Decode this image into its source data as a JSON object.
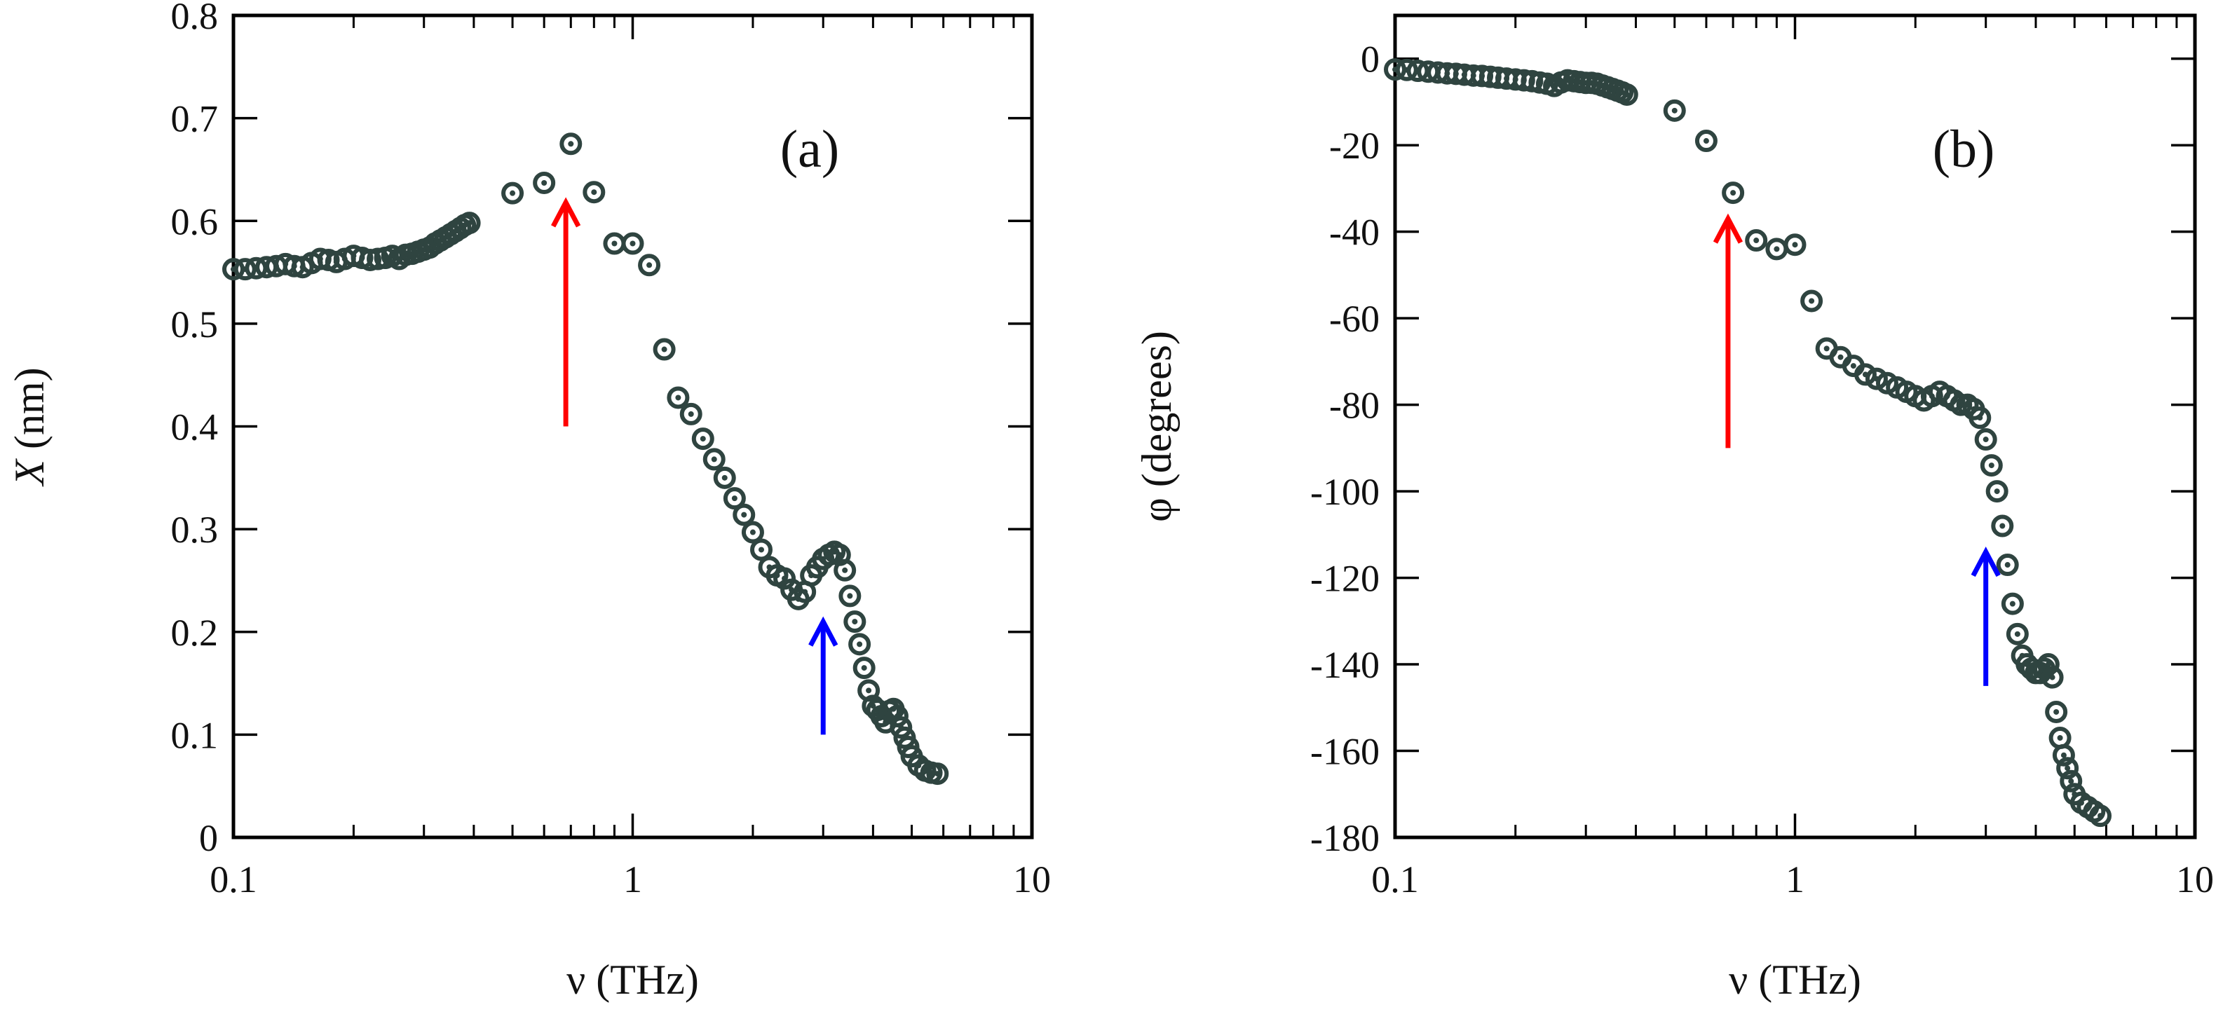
{
  "chart_data": [
    {
      "type": "scatter",
      "panel_label": "(a)",
      "xscale": "log",
      "xlim": [
        0.1,
        10
      ],
      "ylim": [
        0,
        0.8
      ],
      "xlabel": "ν (THz)",
      "ylabel": {
        "symbol": "X",
        "rest": " (nm)"
      },
      "xticks": [
        {
          "value": 0.1,
          "label": "0.1"
        },
        {
          "value": 1,
          "label": "1"
        },
        {
          "value": 10,
          "label": "10"
        }
      ],
      "yticks": [
        {
          "value": 0,
          "label": "0"
        },
        {
          "value": 0.1,
          "label": "0.1"
        },
        {
          "value": 0.2,
          "label": "0.2"
        },
        {
          "value": 0.3,
          "label": "0.3"
        },
        {
          "value": 0.4,
          "label": "0.4"
        },
        {
          "value": 0.5,
          "label": "0.5"
        },
        {
          "value": 0.6,
          "label": "0.6"
        },
        {
          "value": 0.7,
          "label": "0.7"
        },
        {
          "value": 0.8,
          "label": "0.8"
        }
      ],
      "series": [
        {
          "name": "data",
          "color": "#2f4440",
          "points": [
            [
              0.1,
              0.553
            ],
            [
              0.107,
              0.553
            ],
            [
              0.114,
              0.554
            ],
            [
              0.121,
              0.555
            ],
            [
              0.128,
              0.556
            ],
            [
              0.135,
              0.558
            ],
            [
              0.142,
              0.556
            ],
            [
              0.149,
              0.555
            ],
            [
              0.157,
              0.559
            ],
            [
              0.165,
              0.563
            ],
            [
              0.173,
              0.562
            ],
            [
              0.181,
              0.56
            ],
            [
              0.19,
              0.563
            ],
            [
              0.2,
              0.566
            ],
            [
              0.21,
              0.564
            ],
            [
              0.22,
              0.562
            ],
            [
              0.23,
              0.563
            ],
            [
              0.24,
              0.564
            ],
            [
              0.25,
              0.566
            ],
            [
              0.26,
              0.563
            ],
            [
              0.27,
              0.567
            ],
            [
              0.28,
              0.568
            ],
            [
              0.29,
              0.57
            ],
            [
              0.3,
              0.572
            ],
            [
              0.31,
              0.574
            ],
            [
              0.32,
              0.578
            ],
            [
              0.33,
              0.581
            ],
            [
              0.34,
              0.584
            ],
            [
              0.35,
              0.587
            ],
            [
              0.36,
              0.59
            ],
            [
              0.37,
              0.593
            ],
            [
              0.38,
              0.596
            ],
            [
              0.39,
              0.598
            ],
            [
              0.5,
              0.627
            ],
            [
              0.6,
              0.637
            ],
            [
              0.7,
              0.675
            ],
            [
              0.8,
              0.628
            ],
            [
              0.9,
              0.578
            ],
            [
              1.0,
              0.578
            ],
            [
              1.1,
              0.557
            ],
            [
              1.2,
              0.475
            ],
            [
              1.3,
              0.428
            ],
            [
              1.4,
              0.412
            ],
            [
              1.5,
              0.388
            ],
            [
              1.6,
              0.368
            ],
            [
              1.7,
              0.35
            ],
            [
              1.8,
              0.33
            ],
            [
              1.9,
              0.314
            ],
            [
              2.0,
              0.297
            ],
            [
              2.1,
              0.28
            ],
            [
              2.2,
              0.263
            ],
            [
              2.3,
              0.255
            ],
            [
              2.4,
              0.252
            ],
            [
              2.5,
              0.241
            ],
            [
              2.6,
              0.232
            ],
            [
              2.7,
              0.239
            ],
            [
              2.8,
              0.255
            ],
            [
              2.9,
              0.263
            ],
            [
              3.0,
              0.271
            ],
            [
              3.1,
              0.275
            ],
            [
              3.2,
              0.278
            ],
            [
              3.3,
              0.275
            ],
            [
              3.4,
              0.26
            ],
            [
              3.5,
              0.235
            ],
            [
              3.6,
              0.21
            ],
            [
              3.7,
              0.188
            ],
            [
              3.8,
              0.165
            ],
            [
              3.9,
              0.143
            ],
            [
              4.0,
              0.128
            ],
            [
              4.1,
              0.124
            ],
            [
              4.2,
              0.118
            ],
            [
              4.3,
              0.112
            ],
            [
              4.4,
              0.123
            ],
            [
              4.5,
              0.125
            ],
            [
              4.6,
              0.118
            ],
            [
              4.7,
              0.107
            ],
            [
              4.8,
              0.097
            ],
            [
              4.9,
              0.088
            ],
            [
              5.0,
              0.079
            ],
            [
              5.2,
              0.07
            ],
            [
              5.4,
              0.065
            ],
            [
              5.6,
              0.063
            ],
            [
              5.8,
              0.062
            ]
          ]
        }
      ],
      "arrows": [
        {
          "color": "#ff0000",
          "x": 0.68,
          "y_start": 0.4,
          "y_end": 0.618
        },
        {
          "color": "#0000ff",
          "x": 3.0,
          "y_start": 0.1,
          "y_end": 0.21
        }
      ]
    },
    {
      "type": "scatter",
      "panel_label": "(b)",
      "xscale": "log",
      "xlim": [
        0.1,
        10
      ],
      "ylim": [
        -180,
        10
      ],
      "xlabel": "ν (THz)",
      "ylabel": {
        "symbol": "φ",
        "rest": " (degrees)"
      },
      "xticks": [
        {
          "value": 0.1,
          "label": "0.1"
        },
        {
          "value": 1,
          "label": "1"
        },
        {
          "value": 10,
          "label": "10"
        }
      ],
      "yticks": [
        {
          "value": 0,
          "label": "0"
        },
        {
          "value": -20,
          "label": "-20"
        },
        {
          "value": -40,
          "label": "-40"
        },
        {
          "value": -60,
          "label": "-60"
        },
        {
          "value": -80,
          "label": "-80"
        },
        {
          "value": -100,
          "label": "-100"
        },
        {
          "value": -120,
          "label": "-120"
        },
        {
          "value": -140,
          "label": "-140"
        },
        {
          "value": -160,
          "label": "-160"
        },
        {
          "value": -180,
          "label": "-180"
        }
      ],
      "series": [
        {
          "name": "data",
          "color": "#2f4440",
          "points": [
            [
              0.1,
              -2.5
            ],
            [
              0.107,
              -2.6
            ],
            [
              0.114,
              -2.8
            ],
            [
              0.121,
              -3.0
            ],
            [
              0.128,
              -3.2
            ],
            [
              0.135,
              -3.4
            ],
            [
              0.142,
              -3.5
            ],
            [
              0.149,
              -3.7
            ],
            [
              0.157,
              -3.9
            ],
            [
              0.165,
              -4.0
            ],
            [
              0.173,
              -4.2
            ],
            [
              0.181,
              -4.4
            ],
            [
              0.19,
              -4.6
            ],
            [
              0.2,
              -4.8
            ],
            [
              0.21,
              -5.0
            ],
            [
              0.22,
              -5.2
            ],
            [
              0.23,
              -5.5
            ],
            [
              0.24,
              -5.8
            ],
            [
              0.25,
              -6.3
            ],
            [
              0.26,
              -5.5
            ],
            [
              0.27,
              -5.0
            ],
            [
              0.28,
              -5.2
            ],
            [
              0.29,
              -5.4
            ],
            [
              0.3,
              -5.6
            ],
            [
              0.31,
              -5.6
            ],
            [
              0.32,
              -5.8
            ],
            [
              0.33,
              -6.2
            ],
            [
              0.34,
              -6.6
            ],
            [
              0.35,
              -7.0
            ],
            [
              0.36,
              -7.4
            ],
            [
              0.37,
              -7.8
            ],
            [
              0.38,
              -8.3
            ],
            [
              0.5,
              -12
            ],
            [
              0.6,
              -19
            ],
            [
              0.7,
              -31
            ],
            [
              0.8,
              -42
            ],
            [
              0.9,
              -44
            ],
            [
              1.0,
              -43
            ],
            [
              1.1,
              -56
            ],
            [
              1.2,
              -67
            ],
            [
              1.3,
              -69
            ],
            [
              1.4,
              -71
            ],
            [
              1.5,
              -73
            ],
            [
              1.6,
              -74
            ],
            [
              1.7,
              -75
            ],
            [
              1.8,
              -76
            ],
            [
              1.9,
              -77
            ],
            [
              2.0,
              -78
            ],
            [
              2.1,
              -79
            ],
            [
              2.2,
              -78
            ],
            [
              2.3,
              -77
            ],
            [
              2.4,
              -78
            ],
            [
              2.5,
              -79
            ],
            [
              2.6,
              -80
            ],
            [
              2.7,
              -80
            ],
            [
              2.8,
              -81
            ],
            [
              2.9,
              -83
            ],
            [
              3.0,
              -88
            ],
            [
              3.1,
              -94
            ],
            [
              3.2,
              -100
            ],
            [
              3.3,
              -108
            ],
            [
              3.4,
              -117
            ],
            [
              3.5,
              -126
            ],
            [
              3.6,
              -133
            ],
            [
              3.7,
              -138
            ],
            [
              3.8,
              -140
            ],
            [
              3.9,
              -141
            ],
            [
              4.0,
              -142
            ],
            [
              4.1,
              -142
            ],
            [
              4.2,
              -141
            ],
            [
              4.3,
              -140
            ],
            [
              4.4,
              -143
            ],
            [
              4.5,
              -151
            ],
            [
              4.6,
              -157
            ],
            [
              4.7,
              -161
            ],
            [
              4.8,
              -164
            ],
            [
              4.9,
              -167
            ],
            [
              5.0,
              -170
            ],
            [
              5.2,
              -172
            ],
            [
              5.4,
              -173
            ],
            [
              5.6,
              -174
            ],
            [
              5.8,
              -175
            ]
          ]
        }
      ],
      "arrows": [
        {
          "color": "#ff0000",
          "x": 0.68,
          "y_start": -90,
          "y_end": -37
        },
        {
          "color": "#0000ff",
          "x": 3.0,
          "y_start": -145,
          "y_end": -114
        }
      ]
    }
  ]
}
